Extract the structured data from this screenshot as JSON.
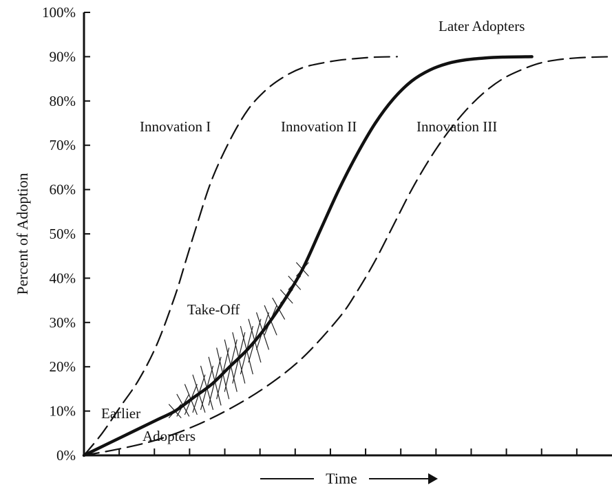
{
  "chart_data": {
    "type": "line",
    "title": "",
    "xlabel": "Time",
    "ylabel": "Percent of Adoption",
    "ylim": [
      0,
      100
    ],
    "xlim": [
      0,
      14.5
    ],
    "y_ticks": [
      "0%",
      "10%",
      "20%",
      "30%",
      "40%",
      "50%",
      "60%",
      "70%",
      "80%",
      "90%",
      "100%"
    ],
    "y_tick_values": [
      0,
      10,
      20,
      30,
      40,
      50,
      60,
      70,
      80,
      90,
      100
    ],
    "x_tick_count": 15,
    "grid": false,
    "series": [
      {
        "name": "Innovation I",
        "style": "dashed",
        "x": [
          0,
          0.5,
          1,
          1.5,
          2,
          2.5,
          2.8,
          3.1,
          3.5,
          4,
          4.5,
          5,
          5.5,
          6,
          6.5,
          7,
          7.5,
          8,
          8.6
        ],
        "y": [
          0,
          5,
          11,
          17,
          25,
          36,
          44,
          52,
          62,
          71,
          78,
          82.5,
          85.5,
          87.5,
          88.5,
          89.2,
          89.6,
          89.9,
          90
        ]
      },
      {
        "name": "Innovation II",
        "style": "solid",
        "x": [
          0,
          1,
          2,
          2.5,
          3,
          3.5,
          4,
          4.5,
          5,
          5.5,
          6,
          6.5,
          7,
          7.5,
          8,
          8.5,
          9,
          9.5,
          10,
          10.5,
          11,
          11.5,
          12.3
        ],
        "y": [
          0,
          4,
          8,
          10,
          13,
          16,
          20,
          24,
          29,
          35,
          42,
          51,
          60,
          68,
          75,
          80.5,
          84.5,
          87,
          88.5,
          89.3,
          89.7,
          89.9,
          90
        ]
      },
      {
        "name": "Innovation III",
        "style": "dashed",
        "x": [
          0,
          1,
          2,
          3,
          4,
          5,
          6,
          7,
          7.5,
          8,
          8.5,
          9,
          9.5,
          10,
          10.5,
          11,
          11.5,
          12,
          12.5,
          13,
          13.5,
          14,
          14.5
        ],
        "y": [
          0,
          1.5,
          3.5,
          6.5,
          10.5,
          15.5,
          22,
          31,
          37,
          44,
          52,
          60,
          67,
          73,
          78,
          82,
          85,
          87,
          88.5,
          89.3,
          89.7,
          89.9,
          90
        ]
      }
    ],
    "annotations": [
      {
        "text": "Innovation I",
        "series": "Innovation I"
      },
      {
        "text": "Innovation II",
        "series": "Innovation II"
      },
      {
        "text": "Innovation III",
        "series": "Innovation III"
      },
      {
        "text": "Later Adopters"
      },
      {
        "text": "Take-Off"
      },
      {
        "text": "Earlier"
      },
      {
        "text": "Adopters"
      }
    ],
    "take_off_region": {
      "x_range": [
        2.5,
        6
      ],
      "along_series": "Innovation II"
    }
  }
}
